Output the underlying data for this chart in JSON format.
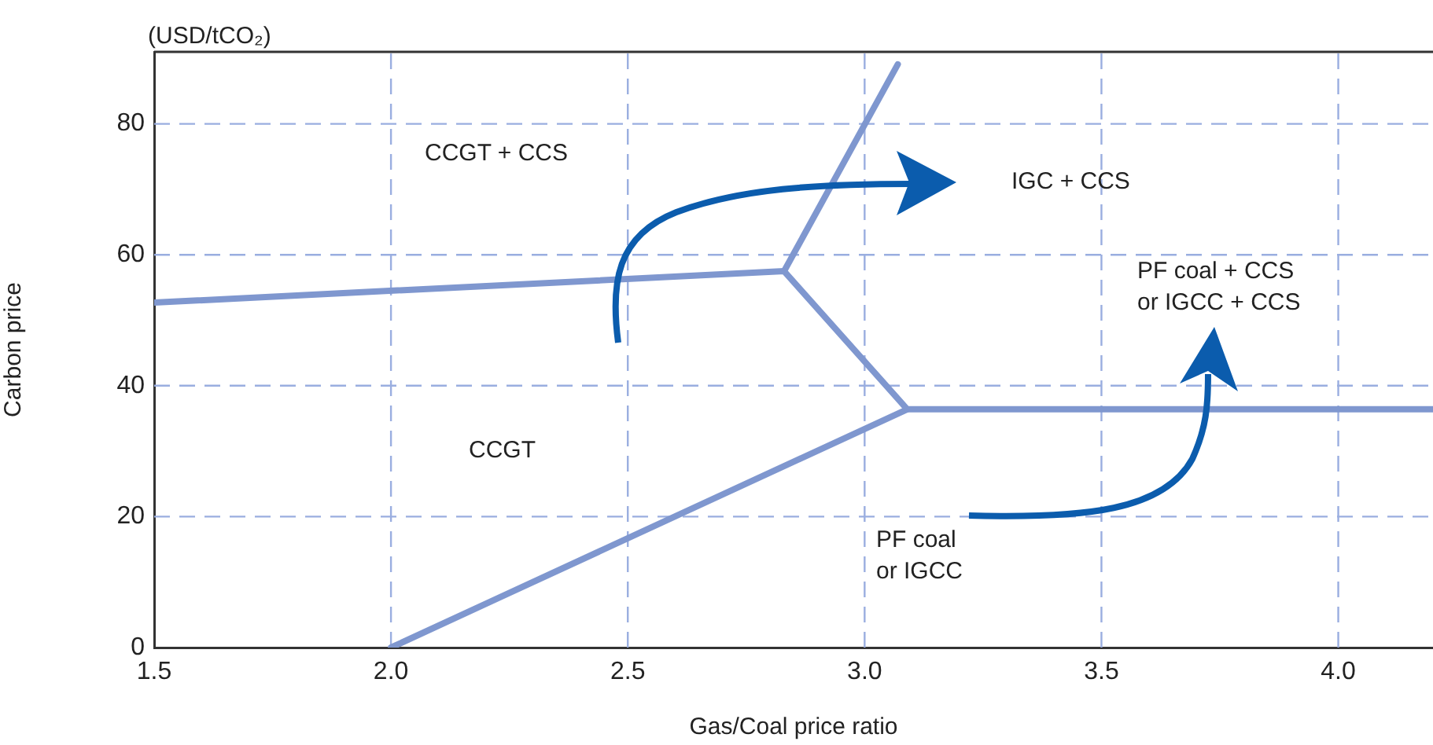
{
  "chart_data": {
    "type": "line",
    "xlabel": "Gas/Coal price ratio",
    "ylabel": "Carbon price",
    "xlim": [
      1.5,
      4.2
    ],
    "xticks": [
      1.5,
      {
        "value": 2,
        "label": "2.0"
      },
      2.5,
      {
        "value": 3,
        "label": "3.0"
      },
      3.5,
      {
        "value": 4,
        "label": "4.0"
      }
    ],
    "ylim": [
      0,
      91
    ],
    "yticks": [
      0,
      20,
      40,
      60,
      80
    ],
    "series": [
      {
        "color": "#7f97cf",
        "x": [
          1.5,
          2.83,
          3.09,
          4.2
        ],
        "values": [
          52.7,
          57.5,
          36.4,
          36.4
        ]
      },
      {
        "color": "#7f97cf",
        "x": [
          2.0,
          3.09
        ],
        "values": [
          0,
          36.4
        ]
      },
      {
        "color": "#7f97cf",
        "x": [
          2.83,
          3.07
        ],
        "values": [
          57.5,
          89.1
        ]
      }
    ],
    "annotations": [
      "(USD/tCO₂)",
      "CCGT + CCS",
      "IGC + CCS",
      "PF coal + CCS\nor IGCC + CCS",
      "CCGT",
      "PF coal\nor IGCC"
    ],
    "grid": true,
    "legend": false,
    "marker": "none",
    "line_style": "solid"
  }
}
